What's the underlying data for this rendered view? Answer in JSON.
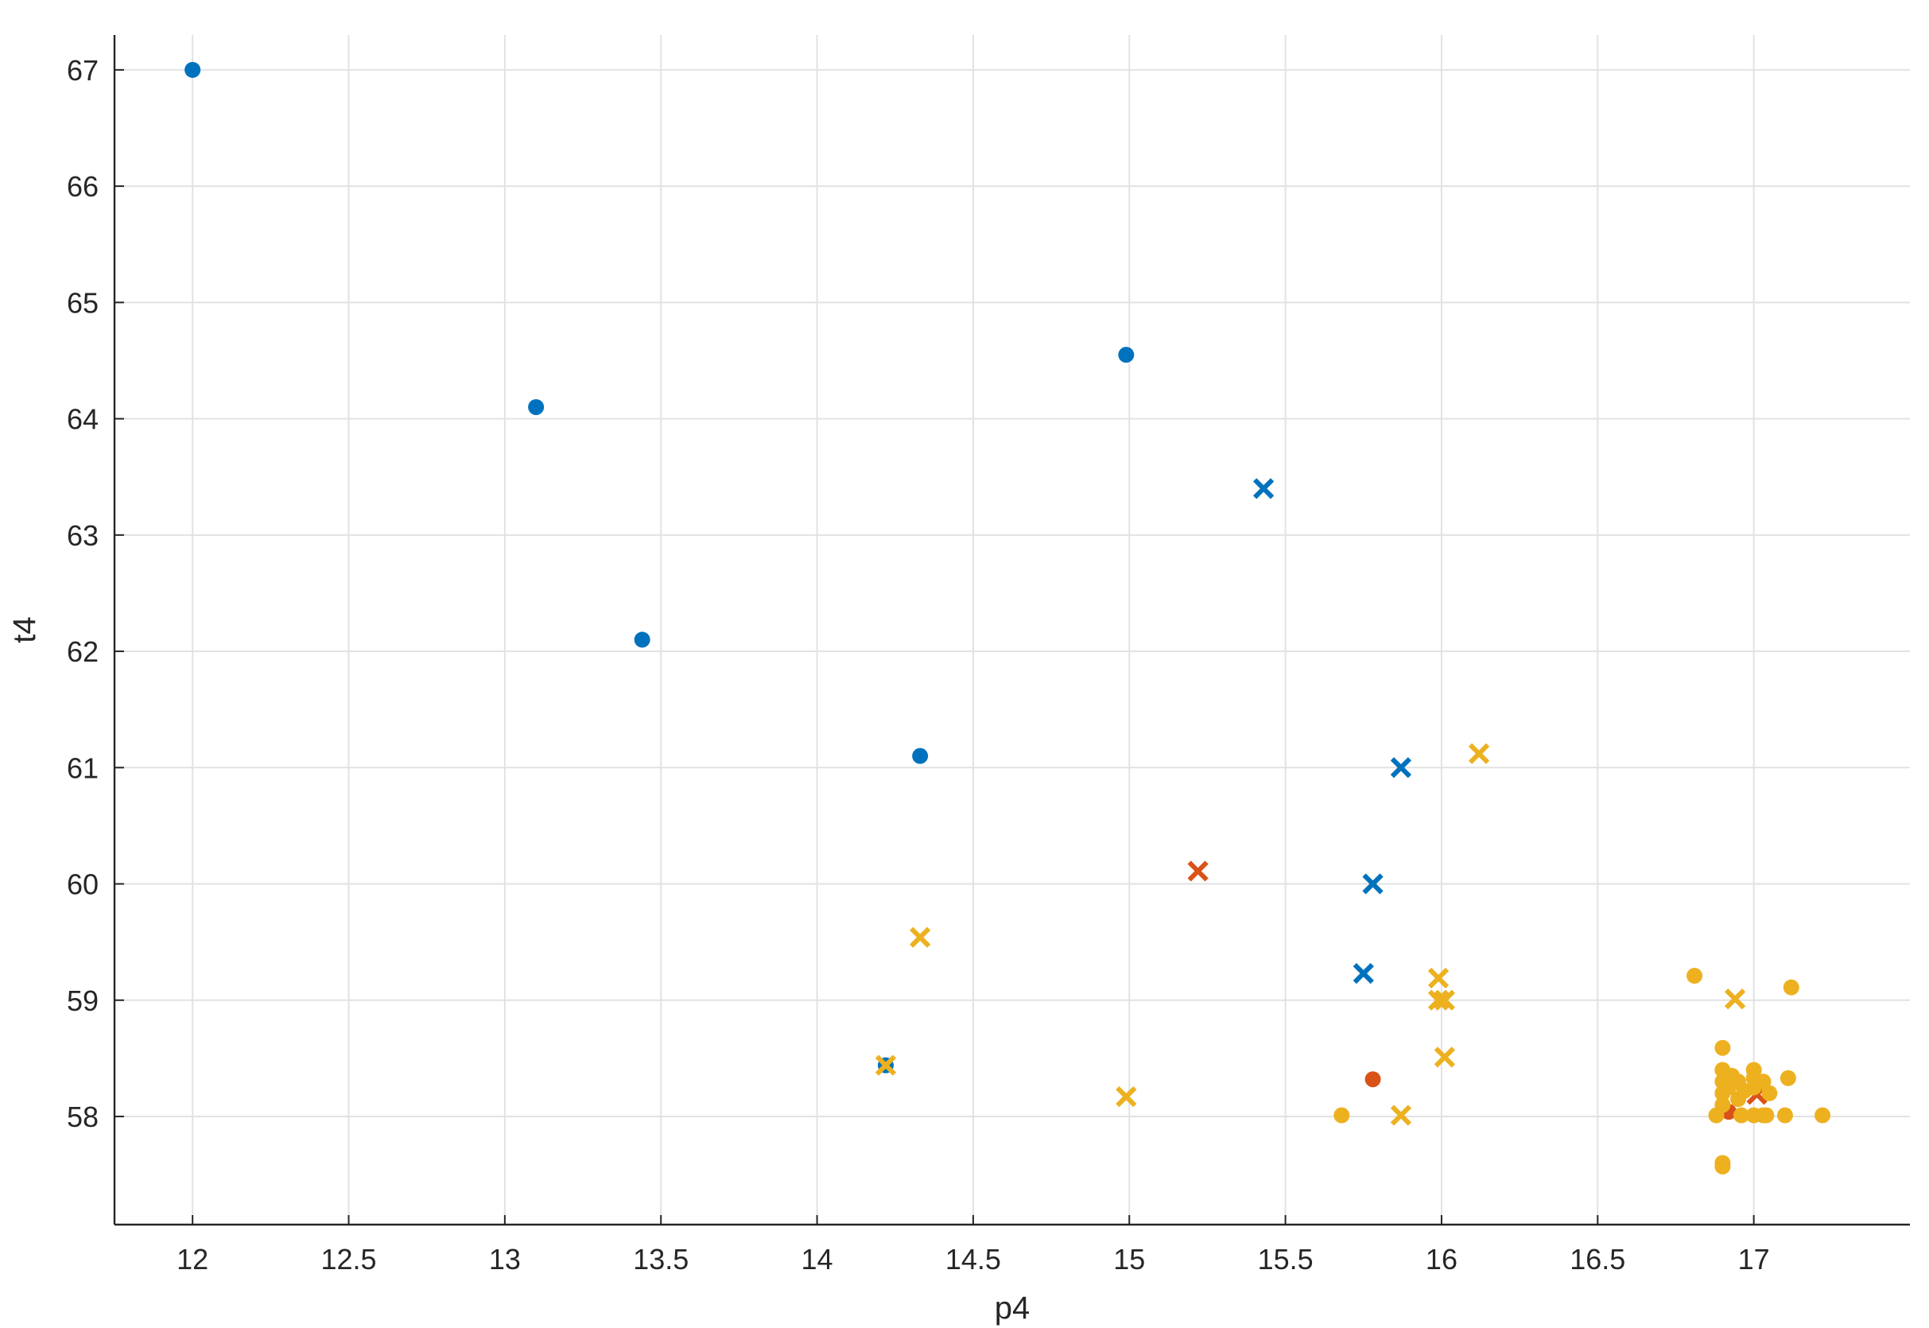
{
  "chart_data": {
    "type": "scatter",
    "title": "",
    "xlabel": "p4",
    "ylabel": "t4",
    "xlim": [
      11.75,
      17.5
    ],
    "ylim": [
      57.07,
      67.3
    ],
    "grid": true,
    "x_ticks": [
      12,
      12.5,
      13,
      13.5,
      14,
      14.5,
      15,
      15.5,
      16,
      16.5,
      17
    ],
    "x_tick_labels": [
      "12",
      "12.5",
      "13",
      "13.5",
      "14",
      "14.5",
      "15",
      "15.5",
      "16",
      "16.5",
      "17"
    ],
    "y_ticks": [
      58,
      59,
      60,
      61,
      62,
      63,
      64,
      65,
      66,
      67
    ],
    "y_tick_labels": [
      "58",
      "59",
      "60",
      "61",
      "62",
      "63",
      "64",
      "65",
      "66",
      "67"
    ],
    "series": [
      {
        "marker": "circle",
        "color": "#0072BD",
        "points": [
          [
            12.0,
            67.0
          ],
          [
            13.1,
            64.1
          ],
          [
            13.44,
            62.1
          ],
          [
            14.33,
            61.1
          ],
          [
            14.99,
            64.55
          ],
          [
            14.22,
            58.44
          ]
        ]
      },
      {
        "marker": "x",
        "color": "#0072BD",
        "points": [
          [
            15.43,
            63.4
          ],
          [
            15.87,
            61.0
          ],
          [
            15.78,
            60.0
          ],
          [
            15.75,
            59.23
          ]
        ]
      },
      {
        "marker": "circle",
        "color": "#D95319",
        "points": [
          [
            15.78,
            58.32
          ],
          [
            16.92,
            58.04
          ]
        ]
      },
      {
        "marker": "x",
        "color": "#D95319",
        "points": [
          [
            15.22,
            60.11
          ],
          [
            17.01,
            58.19
          ]
        ]
      },
      {
        "marker": "circle",
        "color": "#EDB120",
        "points": [
          [
            15.68,
            58.01
          ],
          [
            16.81,
            59.21
          ],
          [
            17.12,
            59.11
          ],
          [
            17.11,
            58.33
          ],
          [
            17.22,
            58.01
          ],
          [
            17.1,
            58.01
          ],
          [
            16.9,
            58.59
          ],
          [
            16.9,
            58.4
          ],
          [
            16.9,
            58.3
          ],
          [
            16.9,
            58.2
          ],
          [
            16.9,
            58.1
          ],
          [
            16.88,
            58.01
          ],
          [
            16.9,
            57.6
          ],
          [
            16.9,
            57.57
          ],
          [
            16.92,
            58.25
          ],
          [
            16.93,
            58.35
          ],
          [
            16.95,
            58.3
          ],
          [
            16.95,
            58.15
          ],
          [
            16.96,
            58.01
          ],
          [
            17.0,
            58.4
          ],
          [
            17.0,
            58.33
          ],
          [
            17.0,
            58.25
          ],
          [
            17.0,
            58.01
          ],
          [
            17.03,
            58.3
          ],
          [
            17.03,
            58.01
          ],
          [
            17.05,
            58.2
          ],
          [
            17.04,
            58.01
          ],
          [
            16.97,
            58.22
          ]
        ]
      },
      {
        "marker": "x",
        "color": "#EDB120",
        "points": [
          [
            14.22,
            58.44
          ],
          [
            14.33,
            59.54
          ],
          [
            14.99,
            58.17
          ],
          [
            15.87,
            58.01
          ],
          [
            15.99,
            59.19
          ],
          [
            15.99,
            59.0
          ],
          [
            16.01,
            59.0
          ],
          [
            16.01,
            58.51
          ],
          [
            16.12,
            61.12
          ],
          [
            16.94,
            59.01
          ]
        ]
      }
    ]
  }
}
